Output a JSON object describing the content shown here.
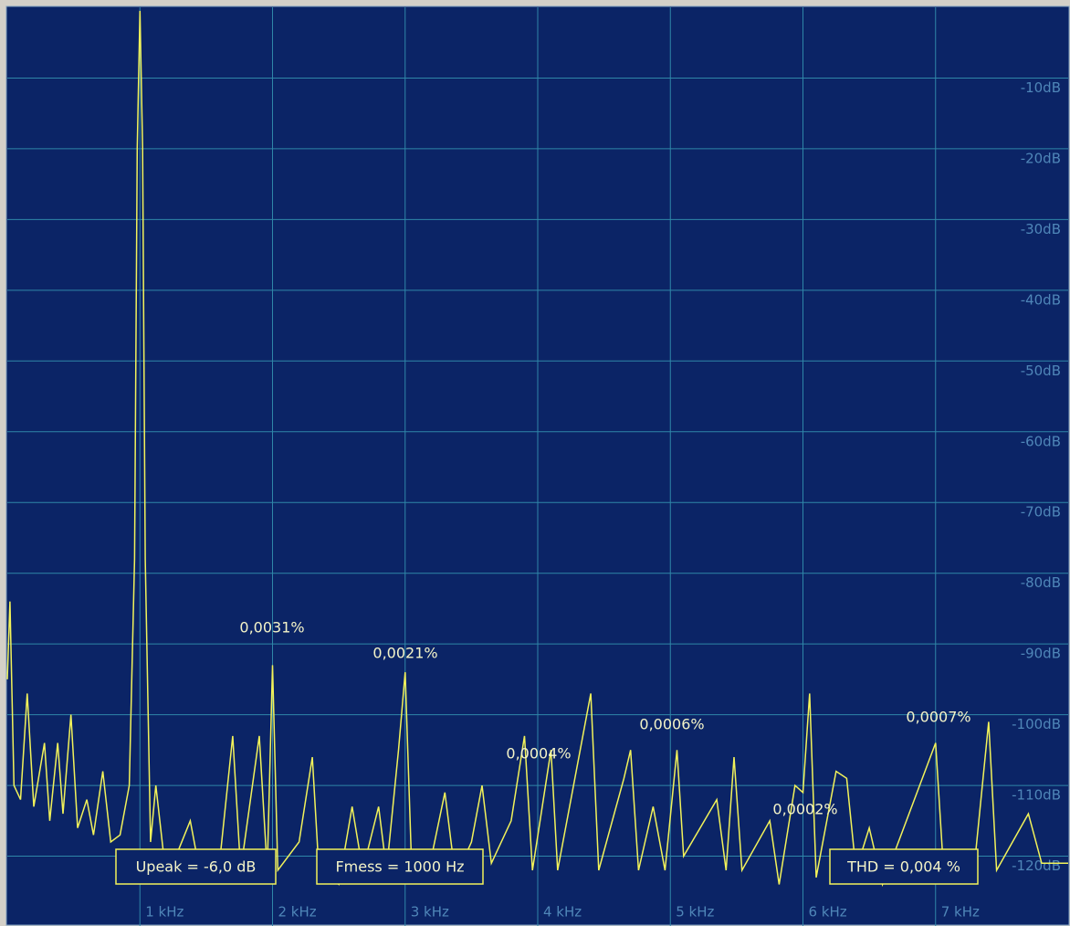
{
  "chart_data": {
    "type": "line",
    "color": "#f2f25a",
    "grid": true,
    "x": [
      0,
      20,
      50,
      100,
      150,
      200,
      280,
      320,
      380,
      420,
      480,
      530,
      600,
      650,
      720,
      780,
      850,
      920,
      960,
      980,
      1000,
      1020,
      1040,
      1080,
      1120,
      1180,
      1250,
      1380,
      1450,
      1600,
      1700,
      1760,
      1900,
      1960,
      2000,
      2040,
      2200,
      2300,
      2350,
      2500,
      2600,
      2680,
      2800,
      2860,
      2950,
      3000,
      3050,
      3200,
      3300,
      3380,
      3500,
      3580,
      3650,
      3800,
      3900,
      3960,
      4100,
      4150,
      4400,
      4460,
      4650,
      4700,
      4760,
      4870,
      4960,
      5050,
      5100,
      5350,
      5420,
      5480,
      5540,
      5750,
      5820,
      5940,
      6000,
      6050,
      6100,
      6250,
      6330,
      6400,
      6500,
      6600,
      7000,
      7060,
      7300,
      7400,
      7460,
      7700,
      7800,
      8000
    ],
    "values": [
      -95,
      -84,
      -110,
      -112,
      -97,
      -113,
      -104,
      -115,
      -104,
      -114,
      -100,
      -116,
      -112,
      -117,
      -108,
      -118,
      -117,
      -110,
      -78,
      -20,
      -0.5,
      -20,
      -78,
      -118,
      -110,
      -120,
      -121,
      -115,
      -122,
      -121,
      -103,
      -122,
      -103,
      -122,
      -93,
      -122,
      -118,
      -106,
      -122,
      -124,
      -113,
      -122,
      -113,
      -122,
      -105,
      -94,
      -122,
      -120,
      -111,
      -123,
      -118,
      -110,
      -121,
      -115,
      -103,
      -122,
      -105,
      -122,
      -97,
      -122,
      -109,
      -105,
      -122,
      -113,
      -122,
      -105,
      -120,
      -112,
      -122,
      -106,
      -122,
      -115,
      -124,
      -110,
      -111,
      -97,
      -123,
      -108,
      -109,
      -122,
      -116,
      -124,
      -104,
      -122,
      -120,
      -101,
      -122,
      -114,
      -121,
      -121
    ],
    "xlim": [
      0,
      8000
    ],
    "xticks": [
      {
        "value": 1000,
        "label": "1 kHz"
      },
      {
        "value": 2000,
        "label": "2 kHz"
      },
      {
        "value": 3000,
        "label": "3 kHz"
      },
      {
        "value": 4000,
        "label": "4 kHz"
      },
      {
        "value": 5000,
        "label": "5 kHz"
      },
      {
        "value": 6000,
        "label": "6 kHz"
      },
      {
        "value": 7000,
        "label": "7 kHz"
      }
    ],
    "ylim": [
      -130,
      0
    ],
    "yticks": [
      {
        "value": -10,
        "label": "-10dB"
      },
      {
        "value": -20,
        "label": "-20dB"
      },
      {
        "value": -30,
        "label": "-30dB"
      },
      {
        "value": -40,
        "label": "-40dB"
      },
      {
        "value": -50,
        "label": "-50dB"
      },
      {
        "value": -60,
        "label": "-60dB"
      },
      {
        "value": -70,
        "label": "-70dB"
      },
      {
        "value": -80,
        "label": "-80dB"
      },
      {
        "value": -90,
        "label": "-90dB"
      },
      {
        "value": -100,
        "label": "-100dB"
      },
      {
        "value": -110,
        "label": "-110dB"
      },
      {
        "value": -120,
        "label": "-120dB"
      }
    ],
    "annotations": [
      "0,0031%",
      "0,0021%",
      "0,0004%",
      "0,0006%",
      "0,0002%",
      "0,0007%"
    ],
    "info_boxes": [
      "Upeak = -6,0 dB",
      "Fmess = 1000 Hz",
      "THD = 0,004 %"
    ]
  }
}
